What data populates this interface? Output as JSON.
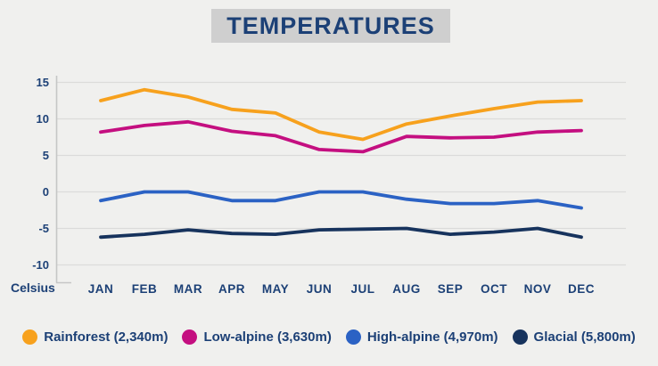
{
  "title": "TEMPERATURES",
  "colors": {
    "background": "#f0f0ee",
    "title_box_bg": "#cfcfcf",
    "text_navy": "#1c4076",
    "gridline": "#dbdbda",
    "axis_line": "#c5c6c6"
  },
  "chart_data": {
    "type": "line",
    "title": "TEMPERATURES",
    "ylabel": "Celsius",
    "xlabel": "",
    "categories": [
      "JAN",
      "FEB",
      "MAR",
      "APR",
      "MAY",
      "JUN",
      "JUL",
      "AUG",
      "SEP",
      "OCT",
      "NOV",
      "DEC"
    ],
    "yticks": [
      15,
      10,
      5,
      0,
      -5,
      -10
    ],
    "ylim": [
      -10,
      15
    ],
    "grid": true,
    "legend_position": "bottom",
    "series": [
      {
        "name": "Rainforest (2,340m)",
        "color": "#f7a11d",
        "values": [
          12.5,
          14.0,
          13.0,
          11.3,
          10.8,
          8.2,
          7.2,
          9.3,
          10.4,
          11.4,
          12.3,
          12.5
        ]
      },
      {
        "name": "Low-alpine (3,630m)",
        "color": "#c40f80",
        "values": [
          8.2,
          9.1,
          9.6,
          8.3,
          7.7,
          5.8,
          5.5,
          7.6,
          7.4,
          7.5,
          8.2,
          8.4
        ]
      },
      {
        "name": "High-alpine (4,970m)",
        "color": "#2b62c4",
        "values": [
          -1.2,
          0.0,
          0.0,
          -1.2,
          -1.2,
          0.0,
          0.0,
          -1.0,
          -1.6,
          -1.6,
          -1.2,
          -2.2
        ]
      },
      {
        "name": "Glacial (5,800m)",
        "color": "#17335d",
        "values": [
          -6.2,
          -5.8,
          -5.2,
          -5.7,
          -5.8,
          -5.2,
          -5.1,
          -5.0,
          -5.8,
          -5.5,
          -5.0,
          -6.2
        ]
      }
    ]
  }
}
